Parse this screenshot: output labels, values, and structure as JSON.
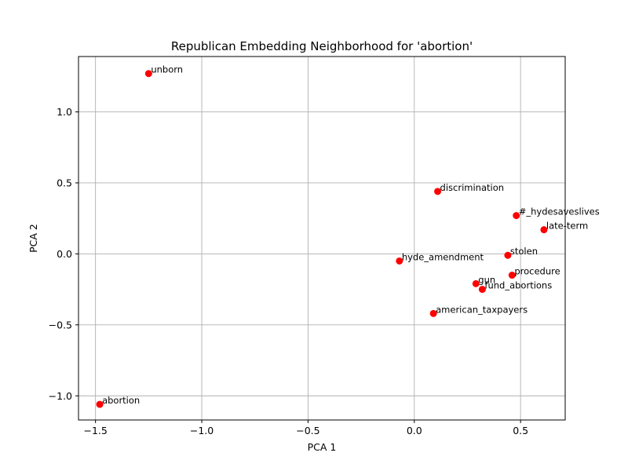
{
  "chart_data": {
    "type": "scatter",
    "title": "Republican Embedding Neighborhood for 'abortion'",
    "xlabel": "PCA 1",
    "ylabel": "PCA 2",
    "xlim": [
      -1.58,
      0.71
    ],
    "ylim": [
      -1.17,
      1.39
    ],
    "grid": true,
    "point_color": "#ff0000",
    "x_ticks": [
      {
        "value": -1.5,
        "label": "−1.5"
      },
      {
        "value": -1.0,
        "label": "−1.0"
      },
      {
        "value": -0.5,
        "label": "−0.5"
      },
      {
        "value": 0.0,
        "label": "0.0"
      },
      {
        "value": 0.5,
        "label": "0.5"
      }
    ],
    "y_ticks": [
      {
        "value": -1.0,
        "label": "−1.0"
      },
      {
        "value": -0.5,
        "label": "−0.5"
      },
      {
        "value": 0.0,
        "label": "0.0"
      },
      {
        "value": 0.5,
        "label": "0.5"
      },
      {
        "value": 1.0,
        "label": "1.0"
      }
    ],
    "points": [
      {
        "label": "unborn",
        "x": -1.25,
        "y": 1.27
      },
      {
        "label": "discrimination",
        "x": 0.11,
        "y": 0.44
      },
      {
        "label": "#_hydesaveslives",
        "x": 0.48,
        "y": 0.27
      },
      {
        "label": "late-term",
        "x": 0.61,
        "y": 0.17
      },
      {
        "label": "stolen",
        "x": 0.44,
        "y": -0.01
      },
      {
        "label": "hyde_amendment",
        "x": -0.07,
        "y": -0.05
      },
      {
        "label": "procedure",
        "x": 0.46,
        "y": -0.15
      },
      {
        "label": "gun",
        "x": 0.29,
        "y": -0.21
      },
      {
        "label": "fund_abortions",
        "x": 0.32,
        "y": -0.25
      },
      {
        "label": "american_taxpayers",
        "x": 0.09,
        "y": -0.42
      },
      {
        "label": "abortion",
        "x": -1.48,
        "y": -1.06
      }
    ]
  }
}
